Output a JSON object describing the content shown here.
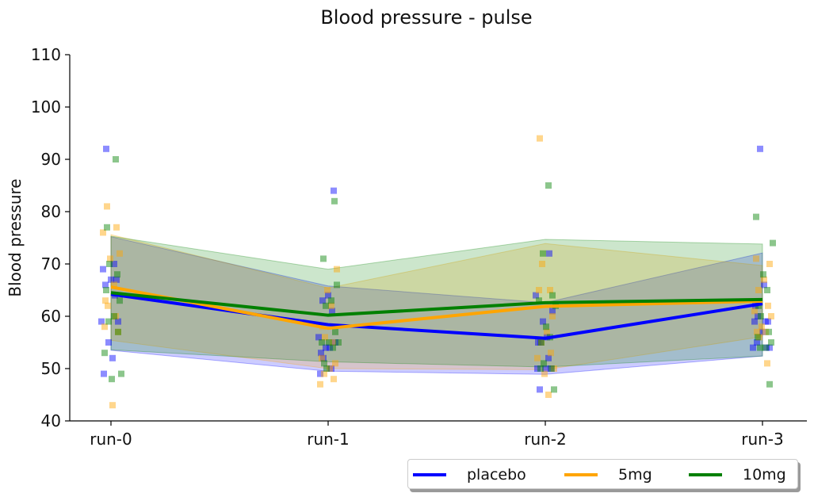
{
  "chart_data": {
    "type": "line",
    "title": "Blood pressure - pulse",
    "xlabel": "",
    "ylabel": "Blood pressure",
    "categories": [
      "run-0",
      "run-1",
      "run-2",
      "run-3"
    ],
    "ylim": [
      40,
      110
    ],
    "yticks": [
      40,
      50,
      60,
      70,
      80,
      90,
      100,
      110
    ],
    "legend_position": "lower-right, below plot",
    "grid": false,
    "series": [
      {
        "name": "placebo",
        "color": "#0000ff",
        "mean": [
          64.2,
          58.4,
          55.8,
          62.4
        ],
        "band_low": [
          53.5,
          49.5,
          48.9,
          52.4
        ],
        "band_high": [
          75.2,
          65.8,
          62.6,
          72.1
        ],
        "points": [
          [
            92,
            70,
            69,
            67,
            67,
            66,
            64,
            59,
            59,
            55,
            52,
            49
          ],
          [
            84,
            64,
            63,
            61,
            56,
            55,
            54,
            54,
            53,
            52,
            50,
            49
          ],
          [
            72,
            64,
            61,
            59,
            56,
            55,
            55,
            52,
            50,
            50,
            50,
            46
          ],
          [
            92,
            66,
            62,
            60,
            59,
            59,
            59,
            57,
            55,
            54,
            54,
            54
          ]
        ]
      },
      {
        "name": "5mg",
        "color": "#ffa500",
        "mean": [
          65.6,
          57.7,
          61.9,
          62.9
        ],
        "band_low": [
          55.4,
          50.0,
          49.8,
          56.1
        ],
        "band_high": [
          75.6,
          65.4,
          73.9,
          69.7
        ],
        "points": [
          [
            81,
            77,
            76,
            72,
            71,
            66,
            63,
            62,
            60,
            58,
            57,
            43
          ],
          [
            69,
            65,
            62,
            58,
            56,
            55,
            52,
            51,
            50,
            49,
            48,
            47
          ],
          [
            94,
            70,
            65,
            65,
            60,
            57,
            55,
            53,
            52,
            50,
            49,
            45
          ],
          [
            71,
            70,
            67,
            65,
            62,
            61,
            60,
            58,
            57,
            57,
            56,
            51
          ]
        ]
      },
      {
        "name": "10mg",
        "color": "#008000",
        "mean": [
          64.5,
          60.2,
          62.6,
          63.2
        ],
        "band_low": [
          53.6,
          51.3,
          50.3,
          52.4
        ],
        "band_high": [
          75.3,
          69.0,
          74.7,
          73.8
        ],
        "points": [
          [
            90,
            77,
            70,
            68,
            65,
            63,
            60,
            59,
            57,
            53,
            49,
            48
          ],
          [
            82,
            71,
            66,
            63,
            62,
            57,
            55,
            55,
            55,
            54,
            51,
            50
          ],
          [
            85,
            72,
            64,
            63,
            62,
            58,
            56,
            55,
            51,
            50,
            50,
            46
          ],
          [
            79,
            74,
            68,
            65,
            62,
            60,
            57,
            56,
            55,
            54,
            54,
            47
          ]
        ]
      }
    ]
  }
}
